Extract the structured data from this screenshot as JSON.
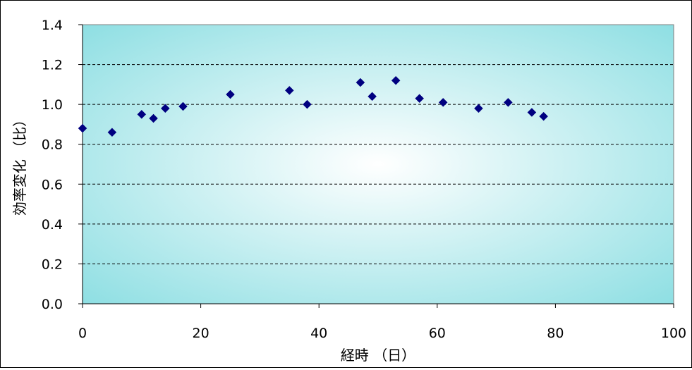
{
  "chart_data": {
    "type": "scatter",
    "title": "",
    "xlabel": "経時 （日）",
    "ylabel": "効率変化 （比）",
    "xlim": [
      0,
      100
    ],
    "ylim": [
      0,
      1.4
    ],
    "x_ticks": [
      "0",
      "20",
      "40",
      "60",
      "80",
      "100"
    ],
    "y_ticks": [
      "0.0",
      "0.2",
      "0.4",
      "0.6",
      "0.8",
      "1.0",
      "1.2",
      "1.4"
    ],
    "grid": "horizontal-dashed",
    "legend": "none",
    "series": [
      {
        "x": [
          0,
          5,
          10,
          12,
          14,
          17,
          25,
          35,
          38,
          47,
          49,
          53,
          57,
          61,
          67,
          72,
          76,
          78
        ],
        "y": [
          0.88,
          0.86,
          0.95,
          0.93,
          0.98,
          0.99,
          1.05,
          1.07,
          1.0,
          1.11,
          1.04,
          1.12,
          1.03,
          1.01,
          0.98,
          1.01,
          0.96,
          0.94
        ]
      }
    ],
    "colors": {
      "marker": "#000080",
      "plot_bg_center": "#ffffff",
      "plot_bg_edge": "#8fdfe3",
      "gridline": "#000000",
      "axis": "#000000"
    }
  }
}
